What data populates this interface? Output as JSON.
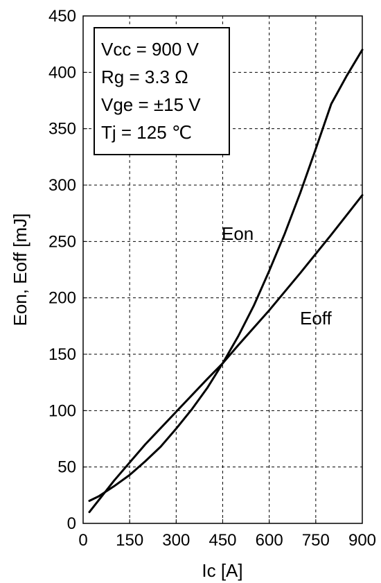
{
  "chart_data": {
    "type": "line",
    "xlabel": "Ic [A]",
    "ylabel": "Eon, Eoff [mJ]",
    "xlim": [
      0,
      900
    ],
    "ylim": [
      0,
      450
    ],
    "x_ticks": [
      0,
      150,
      300,
      450,
      600,
      750,
      900
    ],
    "y_ticks": [
      0,
      50,
      100,
      150,
      200,
      250,
      300,
      350,
      400,
      450
    ],
    "grid": true,
    "conditions": [
      "Vcc = 900 V",
      "Rg = 3.3 Ω",
      "Vge = ±15 V",
      "Tj = 125 ℃"
    ],
    "series": [
      {
        "name": "Eon",
        "x": [
          20,
          50,
          100,
          150,
          200,
          250,
          300,
          350,
          400,
          450,
          500,
          550,
          600,
          650,
          700,
          750,
          800,
          850,
          900
        ],
        "y": [
          20,
          24,
          33,
          43,
          55,
          68,
          84,
          101,
          120,
          142,
          166,
          193,
          224,
          257,
          293,
          332,
          372,
          397,
          420
        ]
      },
      {
        "name": "Eoff",
        "x": [
          20,
          100,
          200,
          300,
          400,
          450,
          500,
          600,
          700,
          800,
          900
        ],
        "y": [
          10,
          38,
          70,
          99,
          128,
          142,
          158,
          189,
          222,
          256,
          291
        ]
      }
    ]
  }
}
